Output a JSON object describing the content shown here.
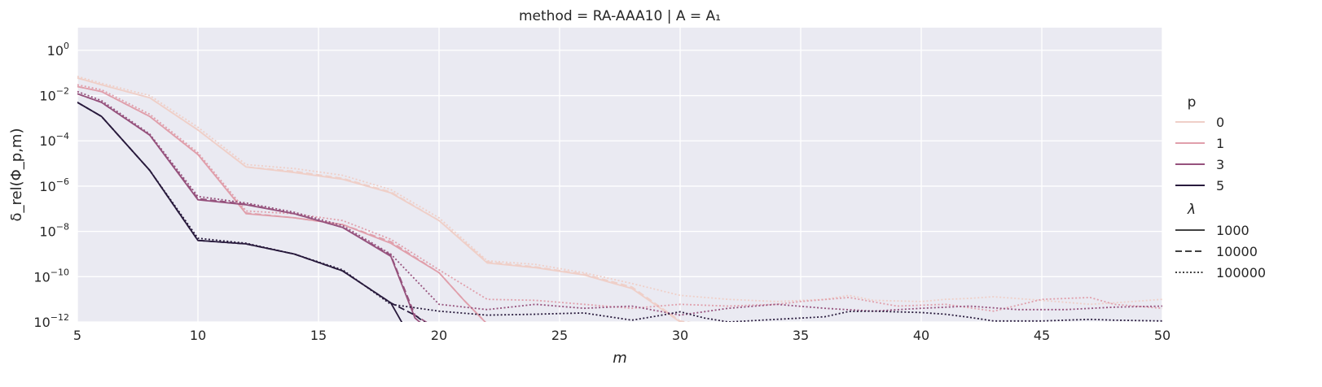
{
  "chart_data": {
    "type": "line",
    "title": "method = RA-AAA10 | A = A₁",
    "xlabel": "m",
    "ylabel": "δ_rel(Φ_p,m)",
    "x_range": [
      5,
      50
    ],
    "y_scale": "log",
    "y_range": [
      1e-12,
      10
    ],
    "x_ticks": [
      5,
      10,
      15,
      20,
      25,
      30,
      35,
      40,
      45,
      50
    ],
    "y_tick_exponents": [
      0,
      -2,
      -4,
      -6,
      -8,
      -10,
      -12
    ],
    "grid": true,
    "legend_placement": "right",
    "legend": {
      "hue_title": "p",
      "hue_entries": [
        {
          "label": "0",
          "color": "#efcfc8"
        },
        {
          "label": "1",
          "color": "#e09fab"
        },
        {
          "label": "3",
          "color": "#96527d"
        },
        {
          "label": "5",
          "color": "#291b3d"
        }
      ],
      "style_title": "λ",
      "style_entries": [
        {
          "label": "1000",
          "dash": "solid"
        },
        {
          "label": "10000",
          "dash": "dashed"
        },
        {
          "label": "100000",
          "dash": "dotted"
        }
      ]
    },
    "series": [
      {
        "p": "0",
        "lambda": "1000",
        "x": [
          5,
          6,
          8,
          10,
          12,
          14,
          16,
          18,
          20,
          22,
          24,
          26,
          28,
          30,
          32
        ],
        "y": [
          0.06,
          0.03,
          0.008,
          0.0003,
          7e-06,
          4e-06,
          2e-06,
          5e-07,
          3e-08,
          4e-10,
          2.5e-10,
          1.2e-10,
          3e-11,
          1e-12,
          5e-13
        ]
      },
      {
        "p": "0",
        "lambda": "10000",
        "x": [
          5,
          6,
          8,
          10,
          12,
          14,
          16,
          18,
          20,
          22,
          24,
          26,
          28,
          30,
          32
        ],
        "y": [
          0.06,
          0.03,
          0.008,
          0.0003,
          7e-06,
          4.5e-06,
          2.2e-06,
          5.5e-07,
          3e-08,
          4.5e-10,
          2.7e-10,
          1.3e-10,
          3.5e-11,
          1.1e-12,
          5e-13
        ]
      },
      {
        "p": "0",
        "lambda": "100000",
        "x": [
          5,
          6,
          8,
          10,
          12,
          14,
          16,
          18,
          20,
          22,
          24,
          26,
          28,
          30,
          32,
          34,
          36,
          37,
          38,
          40,
          41,
          42,
          43,
          45,
          47,
          48,
          50
        ],
        "y": [
          0.07,
          0.035,
          0.01,
          0.0004,
          9e-06,
          6e-06,
          3e-06,
          7e-07,
          4e-08,
          5e-10,
          3.5e-10,
          1.5e-10,
          5e-11,
          1.5e-11,
          1e-11,
          8e-12,
          1e-11,
          1.5e-11,
          9e-12,
          8e-12,
          1e-11,
          1.1e-11,
          1.3e-11,
          9e-12,
          6e-12,
          7e-12,
          1e-11
        ]
      },
      {
        "p": "1",
        "lambda": "1000",
        "x": [
          5,
          6,
          8,
          10,
          12,
          14,
          16,
          18,
          20,
          21,
          22
        ],
        "y": [
          0.025,
          0.015,
          0.0012,
          2.5e-05,
          6e-08,
          4e-08,
          2e-08,
          3e-09,
          1.5e-10,
          1e-11,
          8e-13
        ]
      },
      {
        "p": "1",
        "lambda": "10000",
        "x": [
          5,
          6,
          8,
          10,
          12,
          14,
          16,
          18,
          20,
          21,
          22
        ],
        "y": [
          0.025,
          0.015,
          0.0012,
          2.5e-05,
          6.5e-08,
          4e-08,
          2e-08,
          3.5e-09,
          1.5e-10,
          1e-11,
          8e-13
        ]
      },
      {
        "p": "1",
        "lambda": "100000",
        "x": [
          5,
          6,
          8,
          10,
          12,
          14,
          16,
          18,
          20,
          22,
          24,
          26,
          28,
          30,
          32,
          34,
          35,
          37,
          39,
          41,
          43,
          45,
          47,
          48,
          50
        ],
        "y": [
          0.03,
          0.018,
          0.0015,
          3e-05,
          8e-08,
          6e-08,
          3e-08,
          4.5e-09,
          2e-10,
          1e-11,
          9e-12,
          6e-12,
          4e-12,
          6e-12,
          5e-12,
          6e-12,
          8e-12,
          1.2e-11,
          5e-12,
          6e-12,
          3e-12,
          1e-11,
          1.2e-11,
          6e-12,
          4e-12
        ]
      },
      {
        "p": "3",
        "lambda": "1000",
        "x": [
          5,
          6,
          8,
          10,
          12,
          14,
          16,
          18,
          19,
          19.3
        ],
        "y": [
          0.012,
          0.005,
          0.00018,
          2.5e-07,
          1.5e-07,
          6e-08,
          1.5e-08,
          8e-10,
          1.5e-12,
          8e-13
        ]
      },
      {
        "p": "3",
        "lambda": "10000",
        "x": [
          5,
          6,
          8,
          10,
          12,
          14,
          16,
          18,
          19,
          19.6
        ],
        "y": [
          0.012,
          0.005,
          0.00018,
          2.8e-07,
          1.6e-07,
          6e-08,
          1.5e-08,
          9e-10,
          2e-12,
          8e-13
        ]
      },
      {
        "p": "3",
        "lambda": "100000",
        "x": [
          5,
          6,
          8,
          10,
          12,
          14,
          16,
          18,
          20,
          22,
          24,
          26,
          28,
          30,
          32,
          34,
          36,
          38,
          40,
          42,
          44,
          46,
          48,
          50
        ],
        "y": [
          0.015,
          0.006,
          0.0002,
          3.5e-07,
          1.8e-07,
          7e-08,
          1.8e-08,
          1e-09,
          6e-12,
          3.5e-12,
          6e-12,
          4e-12,
          5e-12,
          2e-12,
          4e-12,
          6e-12,
          4e-12,
          3e-12,
          4e-12,
          5e-12,
          3.5e-12,
          3.5e-12,
          4.5e-12,
          5e-12
        ]
      },
      {
        "p": "5",
        "lambda": "1000",
        "x": [
          5,
          6,
          8,
          10,
          12,
          14,
          16,
          18,
          18.5
        ],
        "y": [
          0.005,
          0.0012,
          5e-06,
          4e-09,
          2.8e-09,
          1e-09,
          1.8e-10,
          7e-12,
          8e-13
        ]
      },
      {
        "p": "5",
        "lambda": "10000",
        "x": [
          5,
          6,
          8,
          10,
          12,
          14,
          16,
          18,
          19,
          19.5
        ],
        "y": [
          0.005,
          0.0012,
          5e-06,
          4e-09,
          2.8e-09,
          1e-09,
          1.8e-10,
          7e-12,
          2e-12,
          8e-13
        ]
      },
      {
        "p": "5",
        "lambda": "100000",
        "x": [
          5,
          6,
          8,
          10,
          12,
          14,
          16,
          18,
          20,
          22,
          24,
          26,
          28,
          29,
          30,
          31,
          32,
          34,
          36,
          37,
          38,
          40,
          41,
          42,
          43,
          45,
          46,
          47,
          48,
          50
        ],
        "y": [
          0.005,
          0.0012,
          5e-06,
          5e-09,
          3e-09,
          1e-09,
          2e-10,
          6e-12,
          3e-12,
          2e-12,
          2.2e-12,
          2.5e-12,
          1.2e-12,
          1.8e-12,
          2.8e-12,
          1.5e-12,
          1e-12,
          1.3e-12,
          1.7e-12,
          2.9e-12,
          3e-12,
          2.6e-12,
          2.2e-12,
          1.6e-12,
          1.1e-12,
          1.1e-12,
          1.2e-12,
          1.3e-12,
          1.2e-12,
          1.1e-12
        ]
      }
    ]
  }
}
